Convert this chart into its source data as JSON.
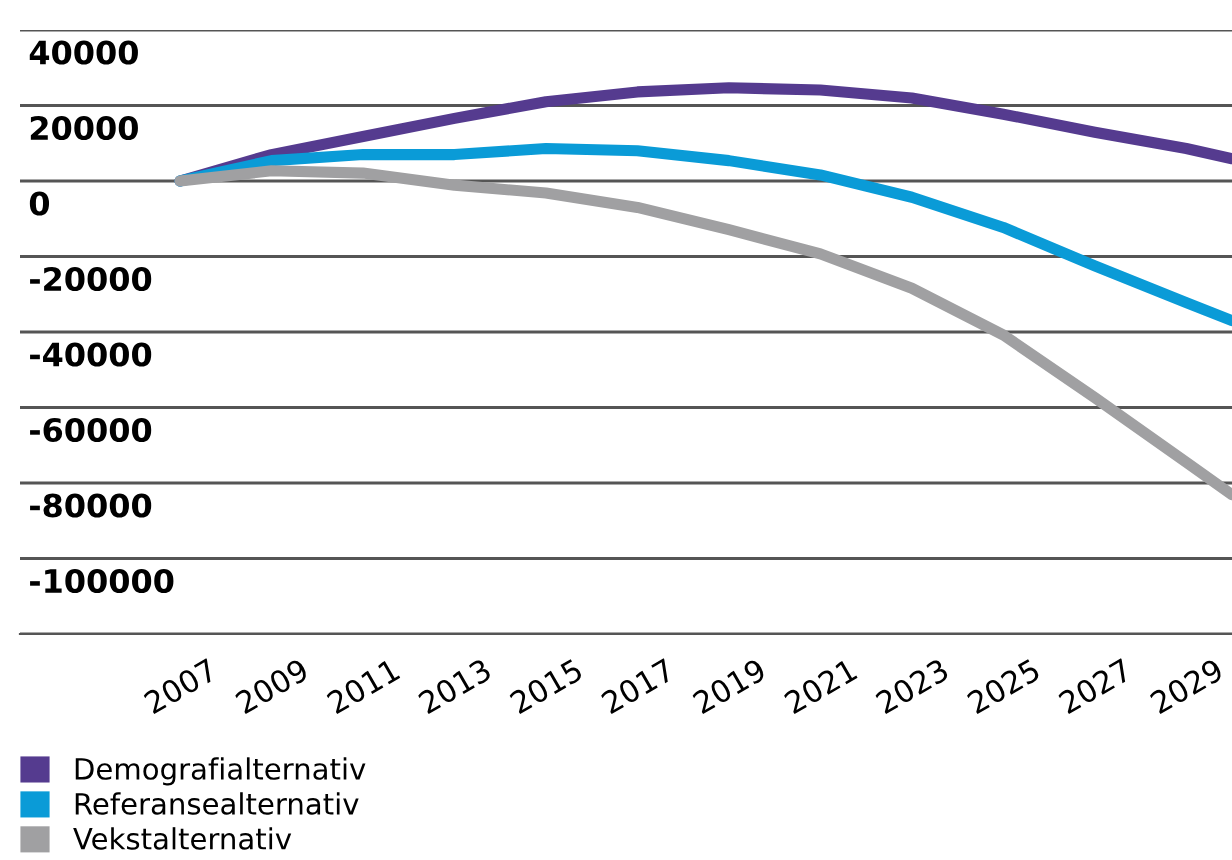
{
  "chart_data": {
    "type": "line",
    "x": [
      2007,
      2009,
      2011,
      2013,
      2015,
      2017,
      2019,
      2021,
      2023,
      2025,
      2027,
      2029,
      2030
    ],
    "series": [
      {
        "name": "Demografialternativ",
        "color": "#553b8f",
        "values": [
          0,
          7000,
          11800,
          16600,
          21000,
          23600,
          24700,
          24100,
          22000,
          17700,
          12900,
          8600,
          5900
        ]
      },
      {
        "name": "Referansealternativ",
        "color": "#0a9bd7",
        "values": [
          0,
          5400,
          7000,
          7000,
          8600,
          8000,
          5400,
          1600,
          -4300,
          -12300,
          -22500,
          -32200,
          -37000
        ]
      },
      {
        "name": "Vekstalternativ",
        "color": "#a0a0a2",
        "values": [
          0,
          2700,
          2100,
          -1100,
          -3200,
          -7000,
          -12900,
          -19300,
          -28400,
          -40800,
          -57400,
          -74500,
          -83100
        ]
      }
    ],
    "xlim": [
      2003.5,
      2030
    ],
    "xticks": [
      2007,
      2009,
      2011,
      2013,
      2015,
      2017,
      2019,
      2021,
      2023,
      2025,
      2027,
      2029
    ],
    "ylim": [
      -120000,
      40000
    ],
    "yticks": [
      {
        "value": -120000,
        "label": null
      },
      -100000,
      -80000,
      -60000,
      -40000,
      -20000,
      0,
      20000,
      40000
    ],
    "grid": "y",
    "legend": "bottom",
    "marker": "none",
    "line_style": "solid"
  }
}
